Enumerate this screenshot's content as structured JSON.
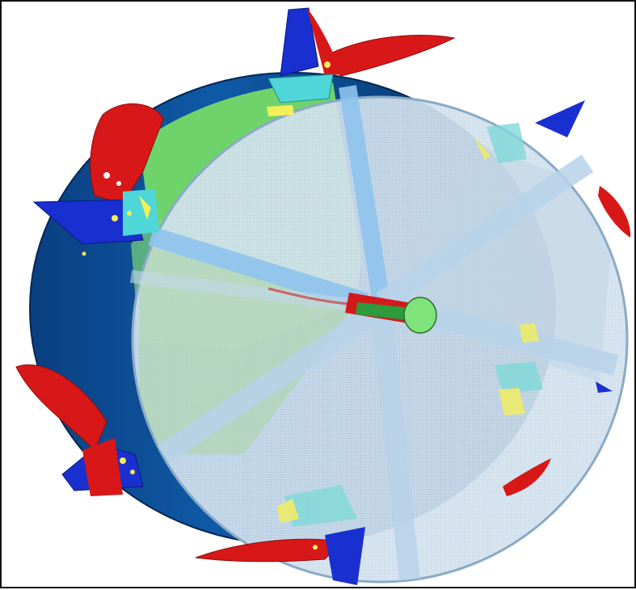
{
  "figure": {
    "subject_icon": "rotor-drum-icon",
    "colors": {
      "drum": "#0c4d94",
      "drum_dark": "#062f61",
      "green": "#6ed36b",
      "screen": "#c9dcec",
      "spoke": "#8fc4ee",
      "blade_red": "#d81818",
      "blade_blue": "#1a2fcf",
      "bracket_cyan": "#4fd6d8",
      "bracket_yellow": "#f3ef5a",
      "shaft_red": "#d21a1a"
    }
  }
}
